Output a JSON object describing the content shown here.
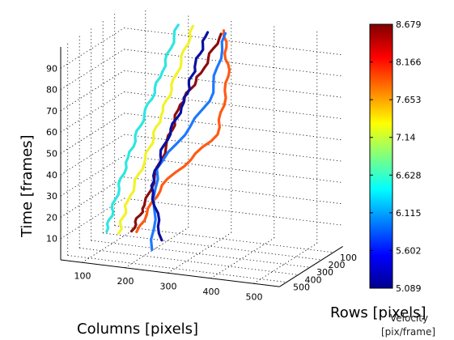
{
  "chart_data": {
    "type": "line3d",
    "xlabel": "Columns [pixels]",
    "ylabel": "Rows [pixels]",
    "zlabel": "Time [frames]",
    "colorbar_title_lines": [
      "Velocity",
      "[pix/frame]"
    ],
    "xlim": [
      50,
      560
    ],
    "ylim": [
      20,
      560
    ],
    "zlim": [
      0,
      100
    ],
    "x_ticks": [
      100,
      200,
      300,
      400,
      500
    ],
    "y_ticks": [
      100,
      200,
      300,
      400,
      500
    ],
    "z_ticks": [
      10,
      20,
      30,
      40,
      50,
      60,
      70,
      80,
      90
    ],
    "grid": true,
    "colorbar": {
      "min": 5.089,
      "max": 8.679,
      "tick_labels": [
        "5.089",
        "5.602",
        "6.115",
        "6.628",
        "7.14",
        "7.653",
        "8.166",
        "8.679"
      ]
    },
    "series": [
      {
        "color": "#2ee6e0",
        "velocity": 6.45,
        "points": [
          [
            86,
            300,
            5
          ],
          [
            103,
            290,
            20
          ],
          [
            128,
            270,
            40
          ],
          [
            160,
            250,
            60
          ],
          [
            194,
            220,
            80
          ],
          [
            212,
            150,
            100
          ]
        ]
      },
      {
        "color": "#f2f22c",
        "velocity": 7.05,
        "points": [
          [
            114,
            300,
            5
          ],
          [
            132,
            290,
            20
          ],
          [
            166,
            262,
            40
          ],
          [
            198,
            248,
            60
          ],
          [
            228,
            222,
            80
          ],
          [
            244,
            142,
            100
          ]
        ]
      },
      {
        "color": "#8b0d0d",
        "velocity": 8.65,
        "points": [
          [
            133,
            260,
            5
          ],
          [
            177,
            312,
            20
          ],
          [
            233,
            330,
            50
          ],
          [
            265,
            328,
            70
          ],
          [
            306,
            300,
            85
          ],
          [
            323,
            192,
            100
          ]
        ]
      },
      {
        "color": "#ff5a14",
        "velocity": 7.95,
        "points": [
          [
            145,
            260,
            5
          ],
          [
            215,
            300,
            30
          ],
          [
            331,
            250,
            55
          ],
          [
            336,
            176,
            80
          ],
          [
            318,
            150,
            100
          ]
        ]
      },
      {
        "color": "#1e78ff",
        "velocity": 5.9,
        "points": [
          [
            230,
            440,
            5
          ],
          [
            220,
            362,
            40
          ],
          [
            311,
            244,
            70
          ],
          [
            330,
            180,
            100
          ]
        ]
      },
      {
        "color": "#0a10a0",
        "velocity": 5.3,
        "points": [
          [
            220,
            320,
            5
          ],
          [
            196,
            320,
            30
          ],
          [
            226,
            322,
            50
          ],
          [
            264,
            292,
            70
          ],
          [
            275,
            240,
            85
          ],
          [
            292,
            192,
            100
          ]
        ]
      }
    ]
  }
}
